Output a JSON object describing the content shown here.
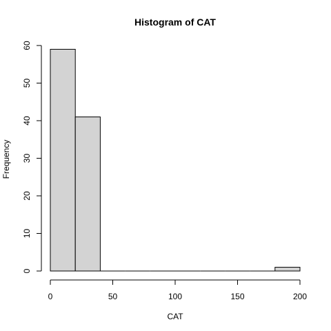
{
  "chart_data": {
    "type": "bar",
    "title": "Histogram of  CAT",
    "xlabel": "CAT",
    "ylabel": "Frequency",
    "bin_edges": [
      0,
      20,
      40,
      60,
      80,
      100,
      120,
      140,
      160,
      180,
      200
    ],
    "values": [
      59,
      41,
      0,
      0,
      0,
      0,
      0,
      0,
      0,
      1
    ],
    "xlim": [
      0,
      200
    ],
    "ylim": [
      0,
      60
    ],
    "x_ticks": [
      0,
      50,
      100,
      150,
      200
    ],
    "y_ticks": [
      0,
      10,
      20,
      30,
      40,
      50,
      60
    ],
    "grid": false,
    "bar_color": "#d3d3d3",
    "edge_color": "#000000"
  }
}
